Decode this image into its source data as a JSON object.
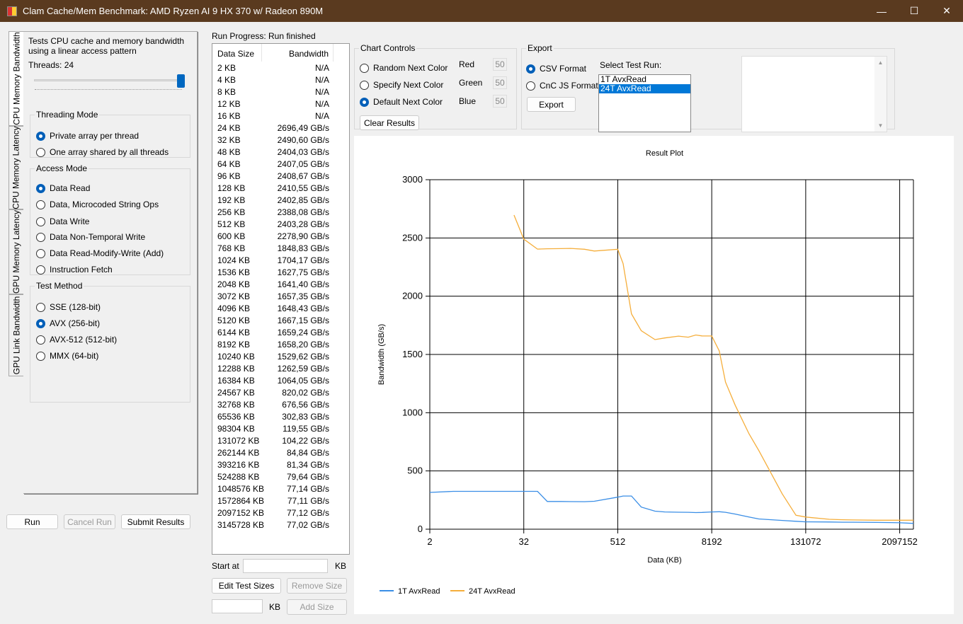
{
  "window": {
    "title": "Clam Cache/Mem Benchmark: AMD Ryzen AI 9 HX 370 w/ Radeon 890M",
    "minimize": "—",
    "maximize": "☐",
    "close": "✕"
  },
  "tabs": [
    "CPU Memory Bandwidth",
    "CPU Memory Latency",
    "GPU Memory Latency",
    "GPU Link Bandwidth"
  ],
  "left": {
    "description": "Tests CPU cache and memory bandwidth using a linear access pattern",
    "threads_label": "Threads: 24",
    "threads_value": 24,
    "threads_max": 24,
    "threading_mode": {
      "title": "Threading Mode",
      "options": [
        "Private array per thread",
        "One array shared by all threads"
      ],
      "selected": 0
    },
    "access_mode": {
      "title": "Access Mode",
      "options": [
        "Data Read",
        "Data, Microcoded String Ops",
        "Data Write",
        "Data Non-Temporal Write",
        "Data Read-Modify-Write (Add)",
        "Instruction Fetch"
      ],
      "selected": 0
    },
    "test_method": {
      "title": "Test Method",
      "options": [
        "SSE (128-bit)",
        "AVX (256-bit)",
        "AVX-512 (512-bit)",
        "MMX (64-bit)"
      ],
      "selected": 1
    },
    "run": "Run",
    "cancel": "Cancel Run",
    "submit": "Submit Results"
  },
  "progress": {
    "label": "Run Progress:",
    "status": "Run finished"
  },
  "results": {
    "headers": [
      "Data Size",
      "Bandwidth"
    ],
    "rows": [
      [
        "2 KB",
        "N/A"
      ],
      [
        "4 KB",
        "N/A"
      ],
      [
        "8 KB",
        "N/A"
      ],
      [
        "12 KB",
        "N/A"
      ],
      [
        "16 KB",
        "N/A"
      ],
      [
        "24 KB",
        "2696,49 GB/s"
      ],
      [
        "32 KB",
        "2490,60 GB/s"
      ],
      [
        "48 KB",
        "2404,03 GB/s"
      ],
      [
        "64 KB",
        "2407,05 GB/s"
      ],
      [
        "96 KB",
        "2408,67 GB/s"
      ],
      [
        "128 KB",
        "2410,55 GB/s"
      ],
      [
        "192 KB",
        "2402,85 GB/s"
      ],
      [
        "256 KB",
        "2388,08 GB/s"
      ],
      [
        "512 KB",
        "2403,28 GB/s"
      ],
      [
        "600 KB",
        "2278,90 GB/s"
      ],
      [
        "768 KB",
        "1848,83 GB/s"
      ],
      [
        "1024 KB",
        "1704,17 GB/s"
      ],
      [
        "1536 KB",
        "1627,75 GB/s"
      ],
      [
        "2048 KB",
        "1641,40 GB/s"
      ],
      [
        "3072 KB",
        "1657,35 GB/s"
      ],
      [
        "4096 KB",
        "1648,43 GB/s"
      ],
      [
        "5120 KB",
        "1667,15 GB/s"
      ],
      [
        "6144 KB",
        "1659,24 GB/s"
      ],
      [
        "8192 KB",
        "1658,20 GB/s"
      ],
      [
        "10240 KB",
        "1529,62 GB/s"
      ],
      [
        "12288 KB",
        "1262,59 GB/s"
      ],
      [
        "16384 KB",
        "1064,05 GB/s"
      ],
      [
        "24567 KB",
        "820,02 GB/s"
      ],
      [
        "32768 KB",
        "676,56 GB/s"
      ],
      [
        "65536 KB",
        "302,83 GB/s"
      ],
      [
        "98304 KB",
        "119,55 GB/s"
      ],
      [
        "131072 KB",
        "104,22 GB/s"
      ],
      [
        "262144 KB",
        "84,84 GB/s"
      ],
      [
        "393216 KB",
        "81,34 GB/s"
      ],
      [
        "524288 KB",
        "79,64 GB/s"
      ],
      [
        "1048576 KB",
        "77,14 GB/s"
      ],
      [
        "1572864 KB",
        "77,11 GB/s"
      ],
      [
        "2097152 KB",
        "77,12 GB/s"
      ],
      [
        "3145728 KB",
        "77,02 GB/s"
      ]
    ]
  },
  "sizes": {
    "start_label": "Start at",
    "start_value": "",
    "kb1": "KB",
    "edit": "Edit Test Sizes",
    "remove": "Remove Size",
    "add_value": "",
    "kb2": "KB",
    "add": "Add Size"
  },
  "chart_controls": {
    "title": "Chart Controls",
    "options": [
      "Random Next Color",
      "Specify Next Color",
      "Default Next Color"
    ],
    "selected": 2,
    "red_label": "Red",
    "red": "50",
    "green_label": "Green",
    "green": "50",
    "blue_label": "Blue",
    "blue": "50",
    "clear": "Clear Results"
  },
  "export": {
    "title": "Export",
    "options": [
      "CSV Format",
      "CnC JS Format"
    ],
    "selected": 0,
    "button": "Export",
    "select_label": "Select Test Run:",
    "runs": [
      "1T AvxRead",
      "24T AvxRead"
    ],
    "selected_run": 1
  },
  "chart_data": {
    "type": "line",
    "title": "Result Plot",
    "xlabel": "Data (KB)",
    "ylabel": "Bandwidth (GB/s)",
    "xscale": "log2",
    "xlim": [
      2,
      3145728
    ],
    "ylim": [
      0,
      3000
    ],
    "xticks": [
      2,
      32,
      512,
      8192,
      131072,
      2097152
    ],
    "yticks": [
      0,
      500,
      1000,
      1500,
      2000,
      2500,
      3000
    ],
    "grid": true,
    "legend": "bottom-left",
    "series": [
      {
        "name": "1T AvxRead",
        "color": "#3a8ee6",
        "x": [
          2,
          4,
          8,
          12,
          16,
          24,
          32,
          48,
          64,
          96,
          128,
          192,
          256,
          512,
          600,
          768,
          1024,
          1536,
          2048,
          3072,
          4096,
          5120,
          6144,
          8192,
          10240,
          12288,
          16384,
          24567,
          32768,
          65536,
          98304,
          131072,
          262144,
          393216,
          524288,
          1048576,
          1572864,
          2097152,
          3145728
        ],
        "y": [
          316,
          325,
          325,
          325,
          325,
          325,
          325,
          325,
          238,
          238,
          237,
          236,
          240,
          275,
          285,
          285,
          190,
          155,
          148,
          146,
          145,
          143,
          144,
          148,
          150,
          145,
          130,
          105,
          88,
          75,
          68,
          63,
          62,
          60,
          60,
          58,
          57,
          55,
          50
        ]
      },
      {
        "name": "24T AvxRead",
        "color": "#f5ae3b",
        "x": [
          24,
          32,
          48,
          64,
          96,
          128,
          192,
          256,
          512,
          600,
          768,
          1024,
          1536,
          2048,
          3072,
          4096,
          5120,
          6144,
          8192,
          10240,
          12288,
          16384,
          24567,
          32768,
          65536,
          98304,
          131072,
          262144,
          393216,
          524288,
          1048576,
          1572864,
          2097152,
          3145728
        ],
        "y": [
          2696.49,
          2490.6,
          2404.03,
          2407.05,
          2408.67,
          2410.55,
          2402.85,
          2388.08,
          2403.28,
          2278.9,
          1848.83,
          1704.17,
          1627.75,
          1641.4,
          1657.35,
          1648.43,
          1667.15,
          1659.24,
          1658.2,
          1529.62,
          1262.59,
          1064.05,
          820.02,
          676.56,
          302.83,
          119.55,
          104.22,
          84.84,
          81.34,
          79.64,
          77.14,
          77.11,
          77.12,
          77.02
        ]
      }
    ]
  }
}
